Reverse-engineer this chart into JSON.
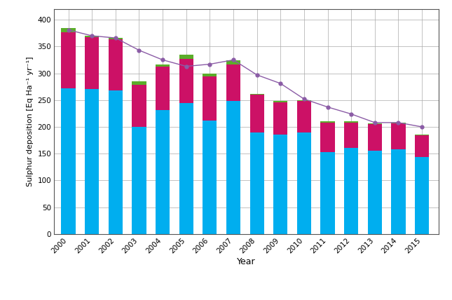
{
  "years": [
    2000,
    2001,
    2002,
    2003,
    2004,
    2005,
    2006,
    2007,
    2008,
    2009,
    2010,
    2011,
    2012,
    2013,
    2014,
    2015
  ],
  "wet_so4": [
    272,
    270,
    268,
    200,
    232,
    245,
    212,
    248,
    190,
    186,
    190,
    153,
    161,
    155,
    158,
    144
  ],
  "dry_so4": [
    105,
    97,
    95,
    78,
    80,
    82,
    82,
    68,
    70,
    60,
    58,
    55,
    47,
    50,
    48,
    40
  ],
  "occ_so4": [
    8,
    3,
    3,
    7,
    5,
    8,
    5,
    8,
    2,
    3,
    2,
    2,
    2,
    2,
    2,
    2
  ],
  "line_avg": [
    381,
    370,
    366,
    343,
    325,
    313,
    317,
    325,
    297,
    281,
    252,
    237,
    224,
    208,
    208,
    200
  ],
  "wet_color": "#00AEEF",
  "dry_color": "#CC1166",
  "occ_color": "#5BAD2A",
  "line_color": "#8B5CA6",
  "ylabel": "Sulphur deposition [Eq Ha⁻¹ yr⁻¹]",
  "xlabel": "Year",
  "ylim": [
    0,
    420
  ],
  "yticks": [
    0,
    50,
    100,
    150,
    200,
    250,
    300,
    350,
    400
  ],
  "background_color": "#ffffff",
  "grid_color": "#aaaaaa"
}
